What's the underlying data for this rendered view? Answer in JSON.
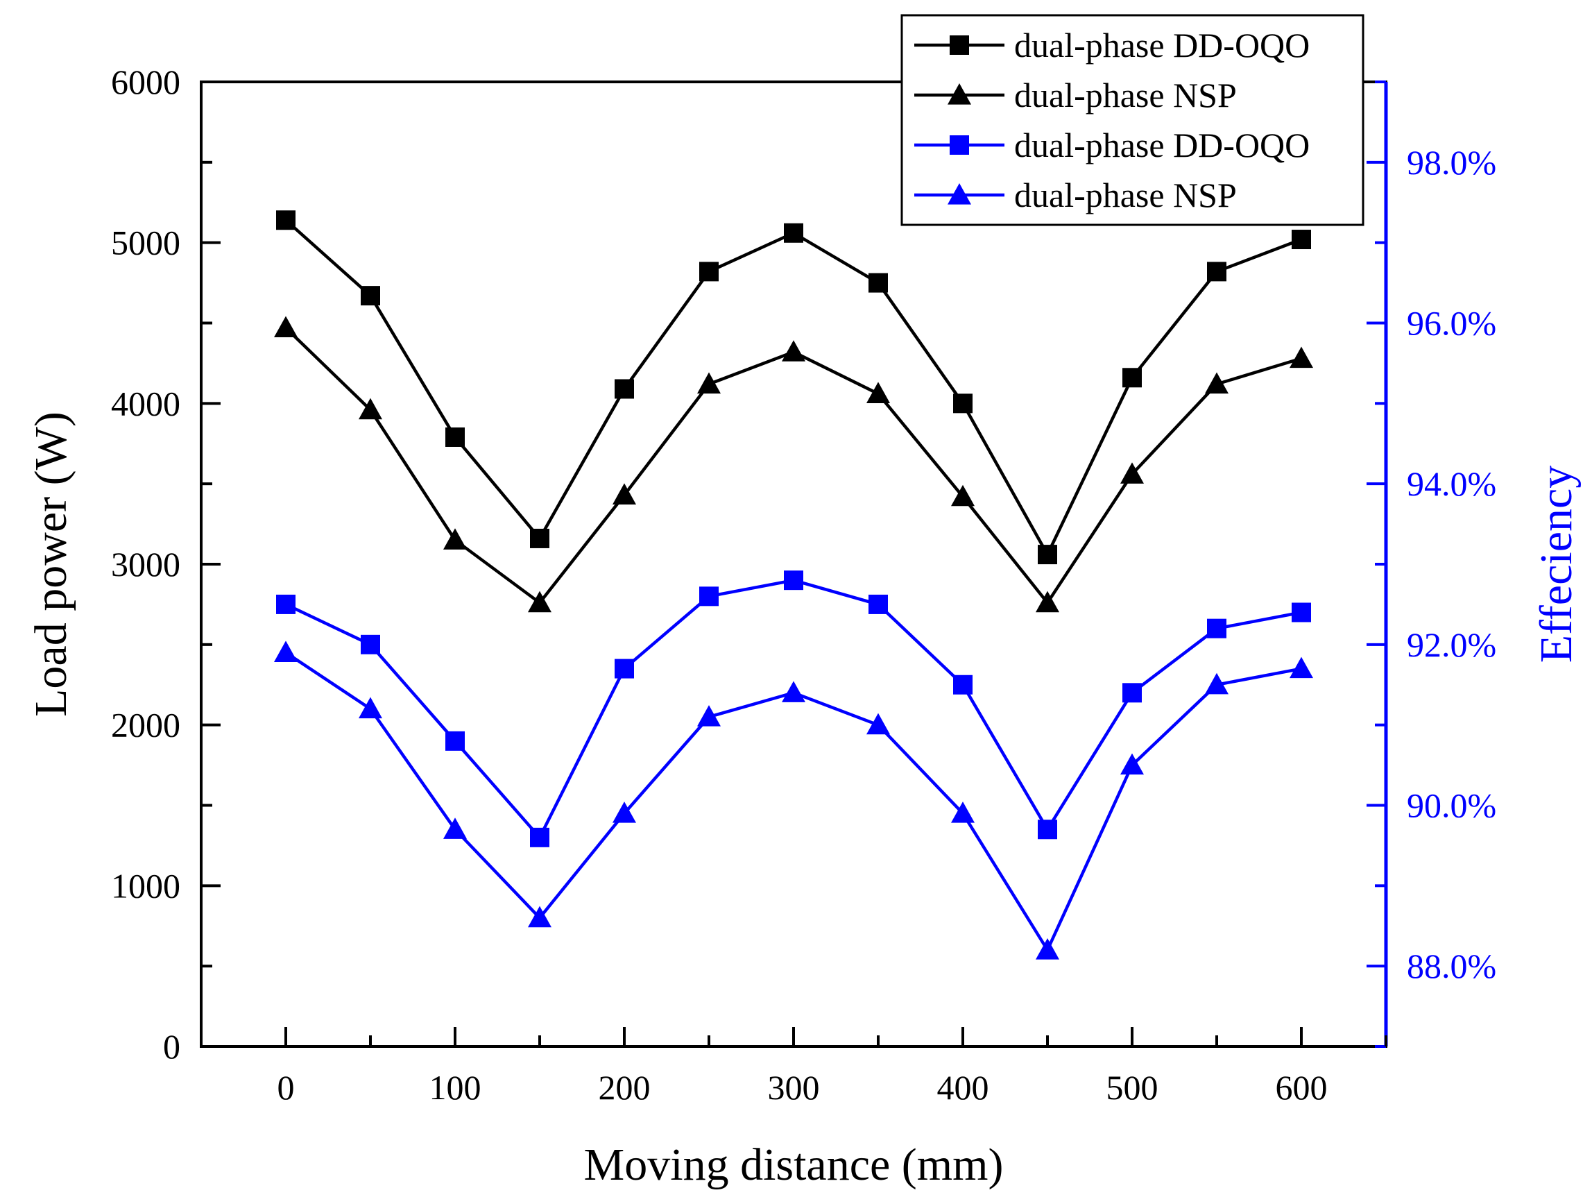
{
  "chart_data": {
    "type": "line",
    "x": [
      0,
      50,
      100,
      150,
      200,
      250,
      300,
      350,
      400,
      450,
      500,
      550,
      600
    ],
    "xlabel": "Moving distance (mm)",
    "ylabel": "Load power (W)",
    "y2label": "Effeciency",
    "xlim": [
      -50,
      650
    ],
    "ylim": [
      0,
      6000
    ],
    "y2lim": [
      87.0,
      99.0
    ],
    "x_ticks": [
      "0",
      "100",
      "200",
      "300",
      "400",
      "500",
      "600"
    ],
    "y_ticks": [
      "0",
      "1000",
      "2000",
      "3000",
      "4000",
      "5000",
      "6000"
    ],
    "y2_ticks": [
      "88.0%",
      "90.0%",
      "92.0%",
      "94.0%",
      "96.0%",
      "98.0%"
    ],
    "grid": false,
    "legend_position": "top-right",
    "series": [
      {
        "name": "dual-phase DD-OQO",
        "axis": "left",
        "color": "#000000",
        "marker": "square",
        "values": [
          5140,
          4670,
          3790,
          3160,
          4090,
          4820,
          5060,
          4750,
          4000,
          3060,
          4160,
          4820,
          5020
        ]
      },
      {
        "name": "dual-phase NSP",
        "axis": "left",
        "color": "#000000",
        "marker": "triangle",
        "values": [
          4470,
          3960,
          3150,
          2760,
          3430,
          4120,
          4320,
          4060,
          3420,
          2760,
          3560,
          4120,
          4280
        ]
      },
      {
        "name": "dual-phase DD-OQO",
        "axis": "right",
        "color": "#0000ff",
        "marker": "square",
        "values": [
          92.5,
          92.0,
          90.8,
          89.6,
          91.7,
          92.6,
          92.8,
          92.5,
          91.5,
          89.7,
          91.4,
          92.2,
          92.4
        ]
      },
      {
        "name": "dual-phase NSP",
        "axis": "right",
        "color": "#0000ff",
        "marker": "triangle",
        "values": [
          91.9,
          91.2,
          89.7,
          88.6,
          89.9,
          91.1,
          91.4,
          91.0,
          89.9,
          88.2,
          90.5,
          91.5,
          91.7
        ]
      }
    ]
  }
}
